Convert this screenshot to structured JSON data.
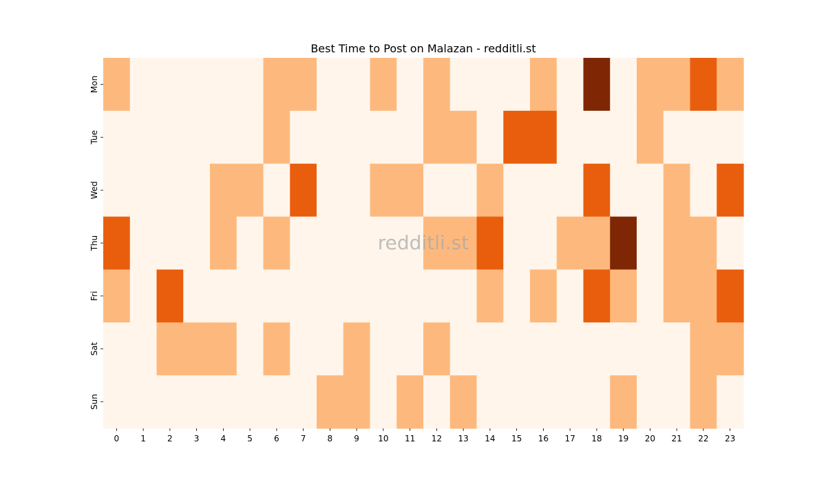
{
  "chart_data": {
    "type": "heatmap",
    "title": "Best Time to Post on Malazan - redditli.st",
    "watermark": "redditli.st",
    "x_categories": [
      "0",
      "1",
      "2",
      "3",
      "4",
      "5",
      "6",
      "7",
      "8",
      "9",
      "10",
      "11",
      "12",
      "13",
      "14",
      "15",
      "16",
      "17",
      "18",
      "19",
      "20",
      "21",
      "22",
      "23"
    ],
    "y_categories": [
      "Mon",
      "Tue",
      "Wed",
      "Thu",
      "Fri",
      "Sat",
      "Sun"
    ],
    "values": [
      [
        1,
        0,
        0,
        0,
        0,
        0,
        1,
        1,
        0,
        0,
        1,
        0,
        1,
        0,
        0,
        0,
        1,
        0,
        3,
        0,
        1,
        1,
        2,
        1
      ],
      [
        0,
        0,
        0,
        0,
        0,
        0,
        1,
        0,
        0,
        0,
        0,
        0,
        1,
        1,
        0,
        2,
        2,
        0,
        0,
        0,
        1,
        0,
        0,
        0
      ],
      [
        0,
        0,
        0,
        0,
        1,
        1,
        0,
        2,
        0,
        0,
        1,
        1,
        0,
        0,
        1,
        0,
        0,
        0,
        2,
        0,
        0,
        1,
        0,
        2
      ],
      [
        2,
        0,
        0,
        0,
        1,
        0,
        1,
        0,
        0,
        0,
        0,
        0,
        1,
        1,
        2,
        0,
        0,
        1,
        1,
        3,
        0,
        1,
        1,
        0
      ],
      [
        1,
        0,
        2,
        0,
        0,
        0,
        0,
        0,
        0,
        0,
        0,
        0,
        0,
        0,
        1,
        0,
        1,
        0,
        2,
        1,
        0,
        1,
        1,
        2
      ],
      [
        0,
        0,
        1,
        1,
        1,
        0,
        1,
        0,
        0,
        1,
        0,
        0,
        1,
        0,
        0,
        0,
        0,
        0,
        0,
        0,
        0,
        0,
        1,
        1
      ],
      [
        0,
        0,
        0,
        0,
        0,
        0,
        0,
        0,
        1,
        1,
        0,
        1,
        0,
        1,
        0,
        0,
        0,
        0,
        0,
        1,
        0,
        0,
        1,
        0
      ]
    ],
    "value_range": [
      0,
      3
    ],
    "colormap": [
      "#fff5eb",
      "#fdb97d",
      "#e95e0d",
      "#7f2704"
    ],
    "colorbar": false,
    "grid": false
  }
}
